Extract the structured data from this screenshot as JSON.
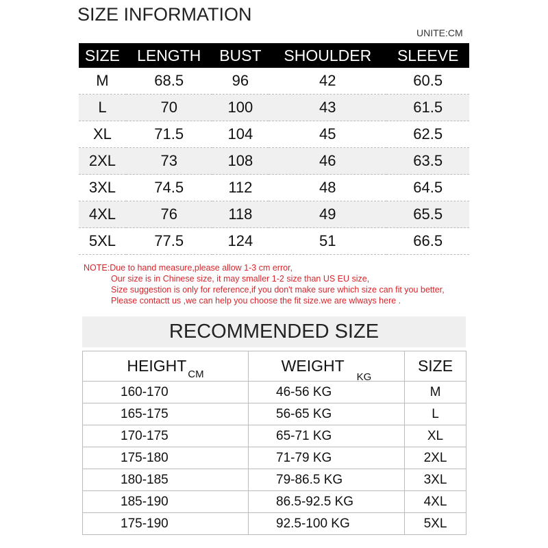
{
  "title": "SIZE INFORMATION",
  "unit": "UNITE:CM",
  "size_table": {
    "headers": [
      "SIZE",
      "LENGTH",
      "BUST",
      "SHOULDER",
      "SLEEVE"
    ],
    "rows": [
      [
        "M",
        "68.5",
        "96",
        "42",
        "60.5"
      ],
      [
        "L",
        "70",
        "100",
        "43",
        "61.5"
      ],
      [
        "XL",
        "71.5",
        "104",
        "45",
        "62.5"
      ],
      [
        "2XL",
        "73",
        "108",
        "46",
        "63.5"
      ],
      [
        "3XL",
        "74.5",
        "112",
        "48",
        "64.5"
      ],
      [
        "4XL",
        "76",
        "118",
        "49",
        "65.5"
      ],
      [
        "5XL",
        "77.5",
        "124",
        "51",
        "66.5"
      ]
    ]
  },
  "note": {
    "label": "NOTE:",
    "lines": [
      "Due to hand measure,please allow 1-3 cm error,",
      "Our size is in Chinese size, it may smaller 1-2 size than US EU size,",
      "Size suggestion is only for reference,if you don't make sure which size can fit you better,",
      "Please contactt us ,we can help you choose the fit size.we are wlways here ."
    ],
    "color": "#d8242a"
  },
  "recommended": {
    "title": "RECOMMENDED SIZE",
    "headers": [
      {
        "label": "HEIGHT",
        "unit": "CM"
      },
      {
        "label": "WEIGHT",
        "unit": "KG"
      },
      {
        "label": "SIZE",
        "unit": ""
      }
    ],
    "rows": [
      [
        "160-170",
        "46-56 KG",
        "M"
      ],
      [
        "165-175",
        "56-65 KG",
        "L"
      ],
      [
        "170-175",
        "65-71 KG",
        "XL"
      ],
      [
        "175-180",
        "71-79 KG",
        "2XL"
      ],
      [
        "180-185",
        "79-86.5 KG",
        "3XL"
      ],
      [
        "185-190",
        "86.5-92.5 KG",
        "4XL"
      ],
      [
        "175-190",
        "92.5-100 KG",
        "5XL"
      ]
    ]
  }
}
